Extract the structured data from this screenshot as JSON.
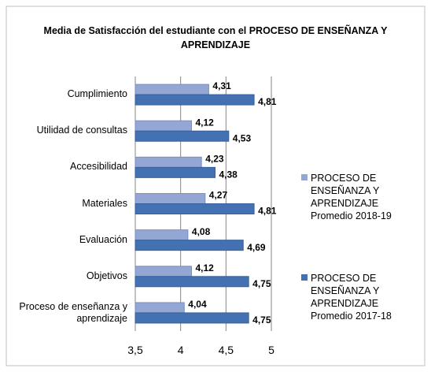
{
  "chart_data": {
    "type": "hbar",
    "title": "Media de Satisfacción del estudiante con el PROCESO DE ENSEÑANZA Y APRENDIZAJE",
    "categories": [
      "Cumplimiento",
      "Utilidad de consultas",
      "Accesibilidad",
      "Materiales",
      "Evaluación",
      "Objetivos",
      "Proceso de enseñanza y aprendizaje"
    ],
    "series": [
      {
        "name": "PROCESO DE ENSEÑANZA Y APRENDIZAJE Promedio 2018-19",
        "color": "#94a6d3",
        "values": [
          4.31,
          4.12,
          4.23,
          4.27,
          4.08,
          4.12,
          4.04
        ],
        "value_labels": [
          "4,31",
          "4,12",
          "4,23",
          "4,27",
          "4,08",
          "4,12",
          "4,04"
        ]
      },
      {
        "name": "PROCESO DE ENSEÑANZA Y APRENDIZAJE Promedio 2017-18",
        "color": "#4471b2",
        "values": [
          4.81,
          4.53,
          4.38,
          4.81,
          4.69,
          4.75,
          4.75
        ],
        "value_labels": [
          "4,81",
          "4,53",
          "4,38",
          "4,81",
          "4,69",
          "4,75",
          "4,75"
        ]
      }
    ],
    "xlim": [
      3.5,
      5
    ],
    "xticks": [
      {
        "value": 3.5,
        "label": "3,5"
      },
      4,
      {
        "value": 4.5,
        "label": "4,5"
      },
      5
    ],
    "grid": true,
    "legend": "right"
  }
}
